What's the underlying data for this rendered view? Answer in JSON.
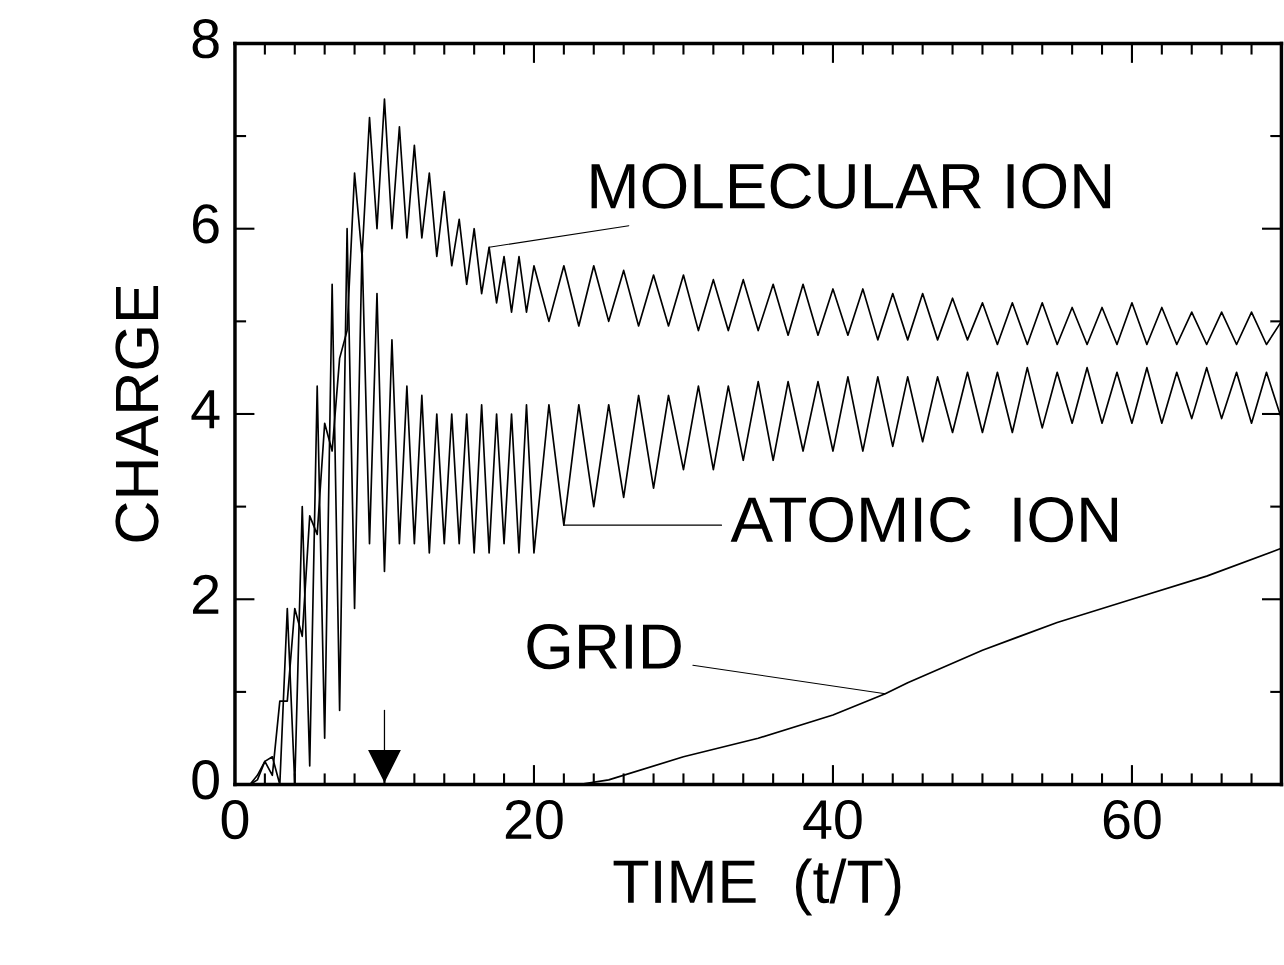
{
  "chart_data": {
    "type": "line",
    "xlabel": "TIME  (t/T)",
    "ylabel": "CHARGE",
    "x": [
      0,
      0.5,
      1,
      1.5,
      2,
      2.5,
      3,
      3.5,
      4,
      4.5,
      5,
      5.5,
      6,
      6.5,
      7,
      7.5,
      8,
      8.5,
      9,
      9.5,
      10,
      10.5,
      11,
      11.5,
      12,
      12.5,
      13,
      13.5,
      14,
      14.5,
      15,
      15.5,
      16,
      16.5,
      17,
      17.5,
      18,
      18.5,
      19,
      19.5,
      20,
      21,
      22,
      23,
      24,
      25,
      26,
      27,
      28,
      29,
      30,
      31,
      32,
      33,
      34,
      35,
      36,
      37,
      38,
      39,
      40,
      41,
      42,
      43,
      44,
      45,
      46,
      47,
      48,
      49,
      50,
      51,
      52,
      53,
      54,
      55,
      56,
      57,
      58,
      59,
      60,
      61,
      62,
      63,
      64,
      65,
      66,
      67,
      68,
      69,
      70
    ],
    "series": [
      {
        "color": "#000000",
        "values": [
          0,
          0,
          0,
          0.1,
          0.25,
          0.1,
          0.9,
          0.9,
          1.9,
          1.6,
          2.9,
          2.7,
          3.9,
          3.6,
          4.6,
          4.9,
          6.6,
          5.7,
          7.2,
          6.0,
          7.4,
          6.0,
          7.1,
          5.9,
          6.9,
          5.9,
          6.6,
          5.7,
          6.4,
          5.6,
          6.1,
          5.4,
          6.0,
          5.3,
          5.8,
          5.2,
          5.7,
          5.1,
          5.7,
          5.1,
          5.6,
          5.0,
          5.6,
          4.95,
          5.6,
          5.0,
          5.55,
          4.95,
          5.5,
          4.95,
          5.5,
          4.9,
          5.45,
          4.9,
          5.45,
          4.9,
          5.4,
          4.85,
          5.4,
          4.85,
          5.35,
          4.85,
          5.35,
          4.8,
          5.3,
          4.8,
          5.3,
          4.8,
          5.25,
          4.8,
          5.2,
          4.75,
          5.2,
          4.75,
          5.2,
          4.75,
          5.15,
          4.75,
          5.15,
          4.75,
          5.2,
          4.75,
          5.15,
          4.75,
          5.1,
          4.75,
          5.1,
          4.75,
          5.1,
          4.75,
          5.0
        ]
      },
      {
        "color": "#000000",
        "values": [
          0,
          0,
          0,
          0.05,
          0.25,
          0.3,
          0.0,
          1.9,
          0.0,
          3.0,
          0.2,
          4.3,
          0.5,
          5.4,
          0.8,
          6.0,
          1.9,
          5.8,
          2.6,
          5.3,
          2.3,
          4.8,
          2.6,
          4.3,
          2.6,
          4.2,
          2.5,
          4.0,
          2.6,
          4.0,
          2.6,
          4.0,
          2.5,
          4.1,
          2.5,
          4.0,
          2.6,
          4.0,
          2.5,
          4.1,
          2.5,
          4.1,
          2.8,
          4.1,
          3.0,
          4.1,
          3.1,
          4.2,
          3.2,
          4.2,
          3.4,
          4.3,
          3.4,
          4.3,
          3.5,
          4.35,
          3.5,
          4.35,
          3.6,
          4.35,
          3.6,
          4.4,
          3.6,
          4.4,
          3.65,
          4.4,
          3.7,
          4.4,
          3.8,
          4.45,
          3.8,
          4.45,
          3.8,
          4.5,
          3.85,
          4.45,
          3.9,
          4.5,
          3.9,
          4.45,
          3.9,
          4.5,
          3.9,
          4.45,
          3.95,
          4.5,
          3.95,
          4.45,
          3.9,
          4.45,
          3.95
        ]
      },
      {
        "color": "#000000",
        "x": [
          23,
          25,
          30,
          35,
          40,
          43.5,
          45,
          50,
          55,
          60,
          65,
          70
        ],
        "values": [
          0,
          0.05,
          0.3,
          0.5,
          0.75,
          0.98,
          1.1,
          1.45,
          1.75,
          2.0,
          2.25,
          2.55
        ]
      }
    ],
    "annotations": [
      {
        "text": "MOLECULAR ION",
        "x": 17,
        "y": 5.8
      },
      {
        "text": "ATOMIC  ION",
        "x": 22,
        "y": 2.8
      },
      {
        "text": "GRID",
        "x": 43.5,
        "y": 0.98
      }
    ],
    "ref_lines": [
      {
        "axis": "x",
        "value": 10
      }
    ],
    "xlim": [
      0,
      70
    ],
    "ylim": [
      0,
      8
    ],
    "xticks": [
      0,
      20,
      40,
      60
    ],
    "yticks": [
      0,
      2,
      4,
      6,
      8
    ],
    "grid": false,
    "legend": false
  }
}
